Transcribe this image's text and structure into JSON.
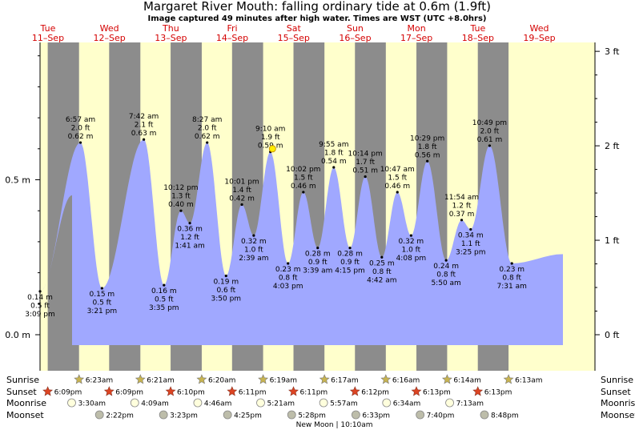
{
  "title": "Margaret River Mouth: falling  ordinary tide at 0.6m (1.9ft)",
  "subtitle": "Image captured 49 minutes after high water. Times are WST (UTC +8.0hrs)",
  "colors": {
    "water": "#a0a8ff",
    "day": "#ffffcc",
    "night": "#8c8c8c",
    "day_label": "#d40000",
    "sunset_star": "#dd4422",
    "sunrise_star": "#c8b450",
    "moonrise": "#ffffdd",
    "moonset": "#bdbdaa"
  },
  "chart_data": {
    "type": "area",
    "title": "Margaret River Mouth: falling  ordinary tide at 0.6m (1.9ft)",
    "subtitle": "Image captured 49 minutes after high water. Times are WST (UTC +8.0hrs)",
    "xlabel": "",
    "ylabel": "",
    "ylim_m": [
      -0.05,
      0.95
    ],
    "y_left_ticks": [
      "0.0 m",
      "0.5 m"
    ],
    "y_right_ticks": [
      "0 ft",
      "1 ft",
      "2 ft",
      "3 ft"
    ],
    "grid": false,
    "days": [
      {
        "dow": "Tue",
        "date": "11–Sep"
      },
      {
        "dow": "Wed",
        "date": "12–Sep"
      },
      {
        "dow": "Thu",
        "date": "13–Sep"
      },
      {
        "dow": "Fri",
        "date": "14–Sep"
      },
      {
        "dow": "Sat",
        "date": "15–Sep"
      },
      {
        "dow": "Sun",
        "date": "16–Sep"
      },
      {
        "dow": "Mon",
        "date": "17–Sep"
      },
      {
        "dow": "Tue",
        "date": "18–Sep"
      },
      {
        "dow": "Wed",
        "date": "19–Sep"
      }
    ],
    "tides": [
      {
        "type": "low",
        "day": 0,
        "time": "3:09 pm",
        "m": "0.14 m",
        "ft": "0.5 ft",
        "h": 0.14
      },
      {
        "type": "high",
        "day": 1,
        "time": "6:57 am",
        "m": "0.62 m",
        "ft": "2.0 ft",
        "h": 0.62
      },
      {
        "type": "low",
        "day": 1,
        "time": "3:21 pm",
        "m": "0.15 m",
        "ft": "0.5 ft",
        "h": 0.15
      },
      {
        "type": "high",
        "day": 2,
        "time": "7:42 am",
        "m": "0.63 m",
        "ft": "2.1 ft",
        "h": 0.63
      },
      {
        "type": "low",
        "day": 2,
        "time": "3:35 pm",
        "m": "0.16 m",
        "ft": "0.5 ft",
        "h": 0.16
      },
      {
        "type": "high",
        "day": 2,
        "time": "10:12 pm",
        "m": "0.40 m",
        "ft": "1.3 ft",
        "h": 0.4
      },
      {
        "type": "low",
        "day": 3,
        "time": "1:41 am",
        "m": "0.36 m",
        "ft": "1.2 ft",
        "h": 0.36
      },
      {
        "type": "high",
        "day": 3,
        "time": "8:27 am",
        "m": "0.62 m",
        "ft": "2.0 ft",
        "h": 0.62
      },
      {
        "type": "low",
        "day": 3,
        "time": "3:50 pm",
        "m": "0.19 m",
        "ft": "0.6 ft",
        "h": 0.19
      },
      {
        "type": "high",
        "day": 3,
        "time": "10:01 pm",
        "m": "0.42 m",
        "ft": "1.4 ft",
        "h": 0.42
      },
      {
        "type": "low",
        "day": 4,
        "time": "2:39 am",
        "m": "0.32 m",
        "ft": "1.0 ft",
        "h": 0.32
      },
      {
        "type": "high",
        "day": 4,
        "time": "9:10 am",
        "m": "0.59 m",
        "ft": "1.9 ft",
        "h": 0.59
      },
      {
        "type": "low",
        "day": 4,
        "time": "4:03 pm",
        "m": "0.23 m",
        "ft": "0.8 ft",
        "h": 0.23
      },
      {
        "type": "high",
        "day": 4,
        "time": "10:02 pm",
        "m": "0.46 m",
        "ft": "1.5 ft",
        "h": 0.46
      },
      {
        "type": "low",
        "day": 5,
        "time": "3:39 am",
        "m": "0.28 m",
        "ft": "0.9 ft",
        "h": 0.28
      },
      {
        "type": "high",
        "day": 5,
        "time": "9:55 am",
        "m": "0.54 m",
        "ft": "1.8 ft",
        "h": 0.54
      },
      {
        "type": "low",
        "day": 5,
        "time": "4:15 pm",
        "m": "0.28 m",
        "ft": "0.9 ft",
        "h": 0.28
      },
      {
        "type": "high",
        "day": 5,
        "time": "10:14 pm",
        "m": "0.51 m",
        "ft": "1.7 ft",
        "h": 0.51
      },
      {
        "type": "low",
        "day": 6,
        "time": "4:42 am",
        "m": "0.25 m",
        "ft": "0.8 ft",
        "h": 0.25
      },
      {
        "type": "high",
        "day": 6,
        "time": "10:47 am",
        "m": "0.46 m",
        "ft": "1.5 ft",
        "h": 0.46
      },
      {
        "type": "low",
        "day": 6,
        "time": "4:08 pm",
        "m": "0.32 m",
        "ft": "1.0 ft",
        "h": 0.32
      },
      {
        "type": "high",
        "day": 6,
        "time": "10:29 pm",
        "m": "0.56 m",
        "ft": "1.8 ft",
        "h": 0.56
      },
      {
        "type": "low",
        "day": 7,
        "time": "5:50 am",
        "m": "0.24 m",
        "ft": "0.8 ft",
        "h": 0.24
      },
      {
        "type": "high",
        "day": 7,
        "time": "11:54 am",
        "m": "0.37 m",
        "ft": "1.2 ft",
        "h": 0.37
      },
      {
        "type": "low",
        "day": 7,
        "time": "3:25 pm",
        "m": "0.34 m",
        "ft": "1.1 ft",
        "h": 0.34
      },
      {
        "type": "high",
        "day": 7,
        "time": "10:49 pm",
        "m": "0.61 m",
        "ft": "2.0 ft",
        "h": 0.61
      },
      {
        "type": "low",
        "day": 8,
        "time": "7:31 am",
        "m": "0.23 m",
        "ft": "0.8 ft",
        "h": 0.23
      }
    ],
    "current": {
      "day": 4,
      "time": "9:59 am",
      "h": 0.6
    },
    "rows": {
      "labels": [
        "Sunrise",
        "Sunset",
        "Moonrise",
        "Moonset"
      ],
      "sunrise": [
        {
          "day": 1,
          "time": "6:23am"
        },
        {
          "day": 2,
          "time": "6:21am"
        },
        {
          "day": 3,
          "time": "6:20am"
        },
        {
          "day": 4,
          "time": "6:19am"
        },
        {
          "day": 5,
          "time": "6:17am"
        },
        {
          "day": 6,
          "time": "6:16am"
        },
        {
          "day": 7,
          "time": "6:14am"
        },
        {
          "day": 8,
          "time": "6:13am"
        }
      ],
      "sunset": [
        {
          "day": 0,
          "time": "6:09pm"
        },
        {
          "day": 1,
          "time": "6:09pm"
        },
        {
          "day": 2,
          "time": "6:10pm"
        },
        {
          "day": 3,
          "time": "6:11pm"
        },
        {
          "day": 4,
          "time": "6:11pm"
        },
        {
          "day": 5,
          "time": "6:12pm"
        },
        {
          "day": 6,
          "time": "6:13pm"
        },
        {
          "day": 7,
          "time": "6:13pm"
        }
      ],
      "moonrise": [
        {
          "day": 1,
          "time": "3:30am"
        },
        {
          "day": 2,
          "time": "4:09am"
        },
        {
          "day": 3,
          "time": "4:46am"
        },
        {
          "day": 4,
          "time": "5:21am"
        },
        {
          "day": 5,
          "time": "5:57am"
        },
        {
          "day": 6,
          "time": "6:34am"
        },
        {
          "day": 7,
          "time": "7:13am"
        }
      ],
      "moonset": [
        {
          "day": 1,
          "time": "2:22pm"
        },
        {
          "day": 2,
          "time": "3:23pm"
        },
        {
          "day": 3,
          "time": "4:25pm"
        },
        {
          "day": 4,
          "time": "5:28pm"
        },
        {
          "day": 5,
          "time": "6:33pm"
        },
        {
          "day": 6,
          "time": "7:40pm"
        },
        {
          "day": 7,
          "time": "8:48pm"
        }
      ]
    },
    "moon_phase": {
      "label": "New Moon",
      "time": "10:10am",
      "day": 5
    }
  }
}
